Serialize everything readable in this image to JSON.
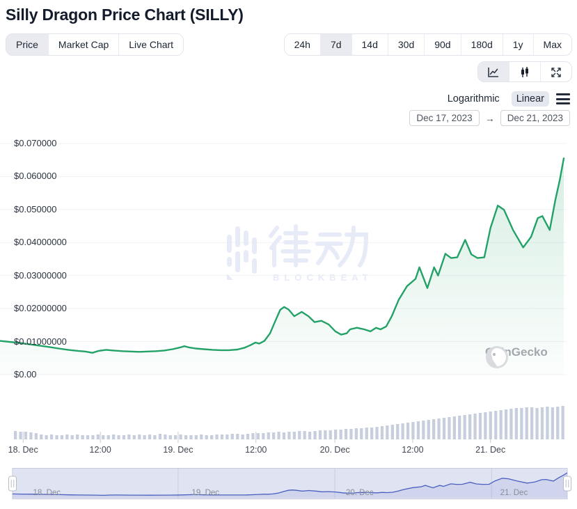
{
  "header": {
    "title": "Silly Dragon Price Chart (SILLY)"
  },
  "metric_tabs": [
    {
      "label": "Price",
      "selected": true
    },
    {
      "label": "Market Cap",
      "selected": false
    },
    {
      "label": "Live Chart",
      "selected": false
    }
  ],
  "range_buttons": [
    {
      "label": "24h",
      "selected": false
    },
    {
      "label": "7d",
      "selected": true
    },
    {
      "label": "14d",
      "selected": false
    },
    {
      "label": "30d",
      "selected": false
    },
    {
      "label": "90d",
      "selected": false
    },
    {
      "label": "180d",
      "selected": false
    },
    {
      "label": "1y",
      "selected": false
    },
    {
      "label": "Max",
      "selected": false
    }
  ],
  "chart_toolbar": [
    {
      "icon": "line-chart",
      "selected": true
    },
    {
      "icon": "candlestick",
      "selected": false
    },
    {
      "icon": "fullscreen",
      "selected": false
    }
  ],
  "scale_toggle": {
    "options": [
      {
        "label": "Logarithmic",
        "selected": false
      },
      {
        "label": "Linear",
        "selected": true
      }
    ]
  },
  "date_range": {
    "from": "Dec 17, 2023",
    "arrow": "→",
    "to": "Dec 21, 2023"
  },
  "watermarks": {
    "center_brand": "律动",
    "center_sub": "BLOCKBEATS",
    "bottom_right": "CoinGecko"
  },
  "colors": {
    "price_line": "#23a268",
    "area_top": "rgba(35,162,104,0.18)",
    "area_bottom": "rgba(35,162,104,0.02)",
    "gridline": "#f0f1f4",
    "volume_bar": "#c7cfde",
    "tick": "#c9ccd3",
    "nav_mask": "#dfe3f2",
    "nav_border": "#c7cdde",
    "nav_line": "#4a5fc0",
    "nav_fill": "rgba(74,95,192,0.10)",
    "nav_label": "#878d99",
    "selected_bg": "#e9ebf0"
  },
  "chart_data": {
    "type": "line",
    "title": "Silly Dragon Price Chart (SILLY)",
    "currency": "USD",
    "window": {
      "from": "Dec 17, 2023",
      "to": "Dec 21, 2023"
    },
    "y_axis": {
      "labels": [
        "$0.070000",
        "$0.060000",
        "$0.050000",
        "$0.04000000",
        "$0.03000000",
        "$0.02000000",
        "$0.01000000",
        "$0.00"
      ],
      "values": [
        0.07,
        0.06,
        0.05,
        0.04,
        0.03,
        0.02,
        0.01,
        0
      ],
      "max": 0.07,
      "min": 0
    },
    "x_axis": {
      "ticks": [
        {
          "label": "18. Dec",
          "t": 0.041
        },
        {
          "label": "12:00",
          "t": 0.178
        },
        {
          "label": "19. Dec",
          "t": 0.316
        },
        {
          "label": "12:00",
          "t": 0.454
        },
        {
          "label": "20. Dec",
          "t": 0.594
        },
        {
          "label": "12:00",
          "t": 0.732
        },
        {
          "label": "21. Dec",
          "t": 0.87
        }
      ]
    },
    "price_series": {
      "name": "Price (USD)",
      "points": [
        [
          0.0,
          0.0102
        ],
        [
          0.017,
          0.0099
        ],
        [
          0.035,
          0.0096
        ],
        [
          0.052,
          0.0092
        ],
        [
          0.069,
          0.0088
        ],
        [
          0.086,
          0.0084
        ],
        [
          0.104,
          0.0079
        ],
        [
          0.121,
          0.0075
        ],
        [
          0.138,
          0.0072
        ],
        [
          0.151,
          0.007
        ],
        [
          0.164,
          0.0066
        ],
        [
          0.175,
          0.0072
        ],
        [
          0.188,
          0.0075
        ],
        [
          0.202,
          0.0073
        ],
        [
          0.217,
          0.0071
        ],
        [
          0.232,
          0.007
        ],
        [
          0.247,
          0.0069
        ],
        [
          0.262,
          0.007
        ],
        [
          0.277,
          0.0071
        ],
        [
          0.291,
          0.0073
        ],
        [
          0.306,
          0.0077
        ],
        [
          0.319,
          0.0082
        ],
        [
          0.327,
          0.0086
        ],
        [
          0.336,
          0.0082
        ],
        [
          0.347,
          0.0079
        ],
        [
          0.362,
          0.0077
        ],
        [
          0.377,
          0.0075
        ],
        [
          0.391,
          0.0074
        ],
        [
          0.406,
          0.0074
        ],
        [
          0.421,
          0.0076
        ],
        [
          0.433,
          0.0081
        ],
        [
          0.444,
          0.0089
        ],
        [
          0.453,
          0.0097
        ],
        [
          0.46,
          0.0094
        ],
        [
          0.469,
          0.0102
        ],
        [
          0.479,
          0.0125
        ],
        [
          0.489,
          0.0165
        ],
        [
          0.497,
          0.0196
        ],
        [
          0.504,
          0.0205
        ],
        [
          0.512,
          0.0197
        ],
        [
          0.522,
          0.0177
        ],
        [
          0.535,
          0.019
        ],
        [
          0.547,
          0.0177
        ],
        [
          0.558,
          0.0159
        ],
        [
          0.57,
          0.0163
        ],
        [
          0.583,
          0.0152
        ],
        [
          0.595,
          0.0131
        ],
        [
          0.605,
          0.0121
        ],
        [
          0.615,
          0.0125
        ],
        [
          0.621,
          0.0137
        ],
        [
          0.633,
          0.0142
        ],
        [
          0.646,
          0.0137
        ],
        [
          0.657,
          0.0131
        ],
        [
          0.667,
          0.0142
        ],
        [
          0.675,
          0.0137
        ],
        [
          0.685,
          0.0146
        ],
        [
          0.695,
          0.0177
        ],
        [
          0.707,
          0.0226
        ],
        [
          0.722,
          0.0268
        ],
        [
          0.737,
          0.029
        ],
        [
          0.744,
          0.0325
        ],
        [
          0.758,
          0.0262
        ],
        [
          0.77,
          0.0325
        ],
        [
          0.777,
          0.03
        ],
        [
          0.79,
          0.0366
        ],
        [
          0.8,
          0.0353
        ],
        [
          0.811,
          0.0355
        ],
        [
          0.825,
          0.0408
        ],
        [
          0.836,
          0.0364
        ],
        [
          0.847,
          0.0353
        ],
        [
          0.859,
          0.0355
        ],
        [
          0.87,
          0.0444
        ],
        [
          0.883,
          0.0512
        ],
        [
          0.894,
          0.0499
        ],
        [
          0.91,
          0.0438
        ],
        [
          0.928,
          0.0385
        ],
        [
          0.942,
          0.0417
        ],
        [
          0.954,
          0.0474
        ],
        [
          0.962,
          0.048
        ],
        [
          0.975,
          0.0438
        ],
        [
          0.985,
          0.0529
        ],
        [
          0.993,
          0.059
        ],
        [
          1.0,
          0.0655
        ]
      ]
    },
    "volume_series": {
      "name": "Volume (relative units)",
      "values": [
        12,
        11,
        11,
        10,
        9,
        7,
        6,
        7,
        6,
        6,
        7,
        6,
        7,
        6,
        6,
        6,
        7,
        6,
        6,
        7,
        6,
        6,
        7,
        6,
        7,
        6,
        7,
        6,
        8,
        7,
        6,
        6,
        7,
        6,
        6,
        6,
        7,
        6,
        6,
        7,
        7,
        7,
        8,
        8,
        7,
        8,
        9,
        9,
        9,
        10,
        10,
        11,
        10,
        11,
        11,
        12,
        12,
        11,
        12,
        13,
        13,
        13,
        14,
        14,
        15,
        15,
        16,
        16,
        17,
        17,
        18,
        19,
        20,
        21,
        22,
        23,
        24,
        25,
        26,
        27,
        28,
        29,
        30,
        31,
        32,
        33,
        34,
        35,
        36,
        37,
        38,
        39,
        40,
        41,
        42,
        43,
        44,
        45,
        45,
        46,
        46,
        45,
        46,
        47,
        46,
        47,
        48
      ],
      "max": 48
    },
    "navigator": {
      "labels": [
        {
          "label": "18. Dec",
          "t": 0.037
        },
        {
          "label": "19. Dec",
          "t": 0.323
        },
        {
          "label": "20. Dec",
          "t": 0.601
        },
        {
          "label": "21. Dec",
          "t": 0.879
        }
      ],
      "gridline_t": [
        0.316,
        0.594,
        0.872
      ],
      "selection": {
        "from_t": 0.0,
        "to_t": 1.0
      }
    },
    "legend": "none",
    "grid": "horizontal"
  }
}
